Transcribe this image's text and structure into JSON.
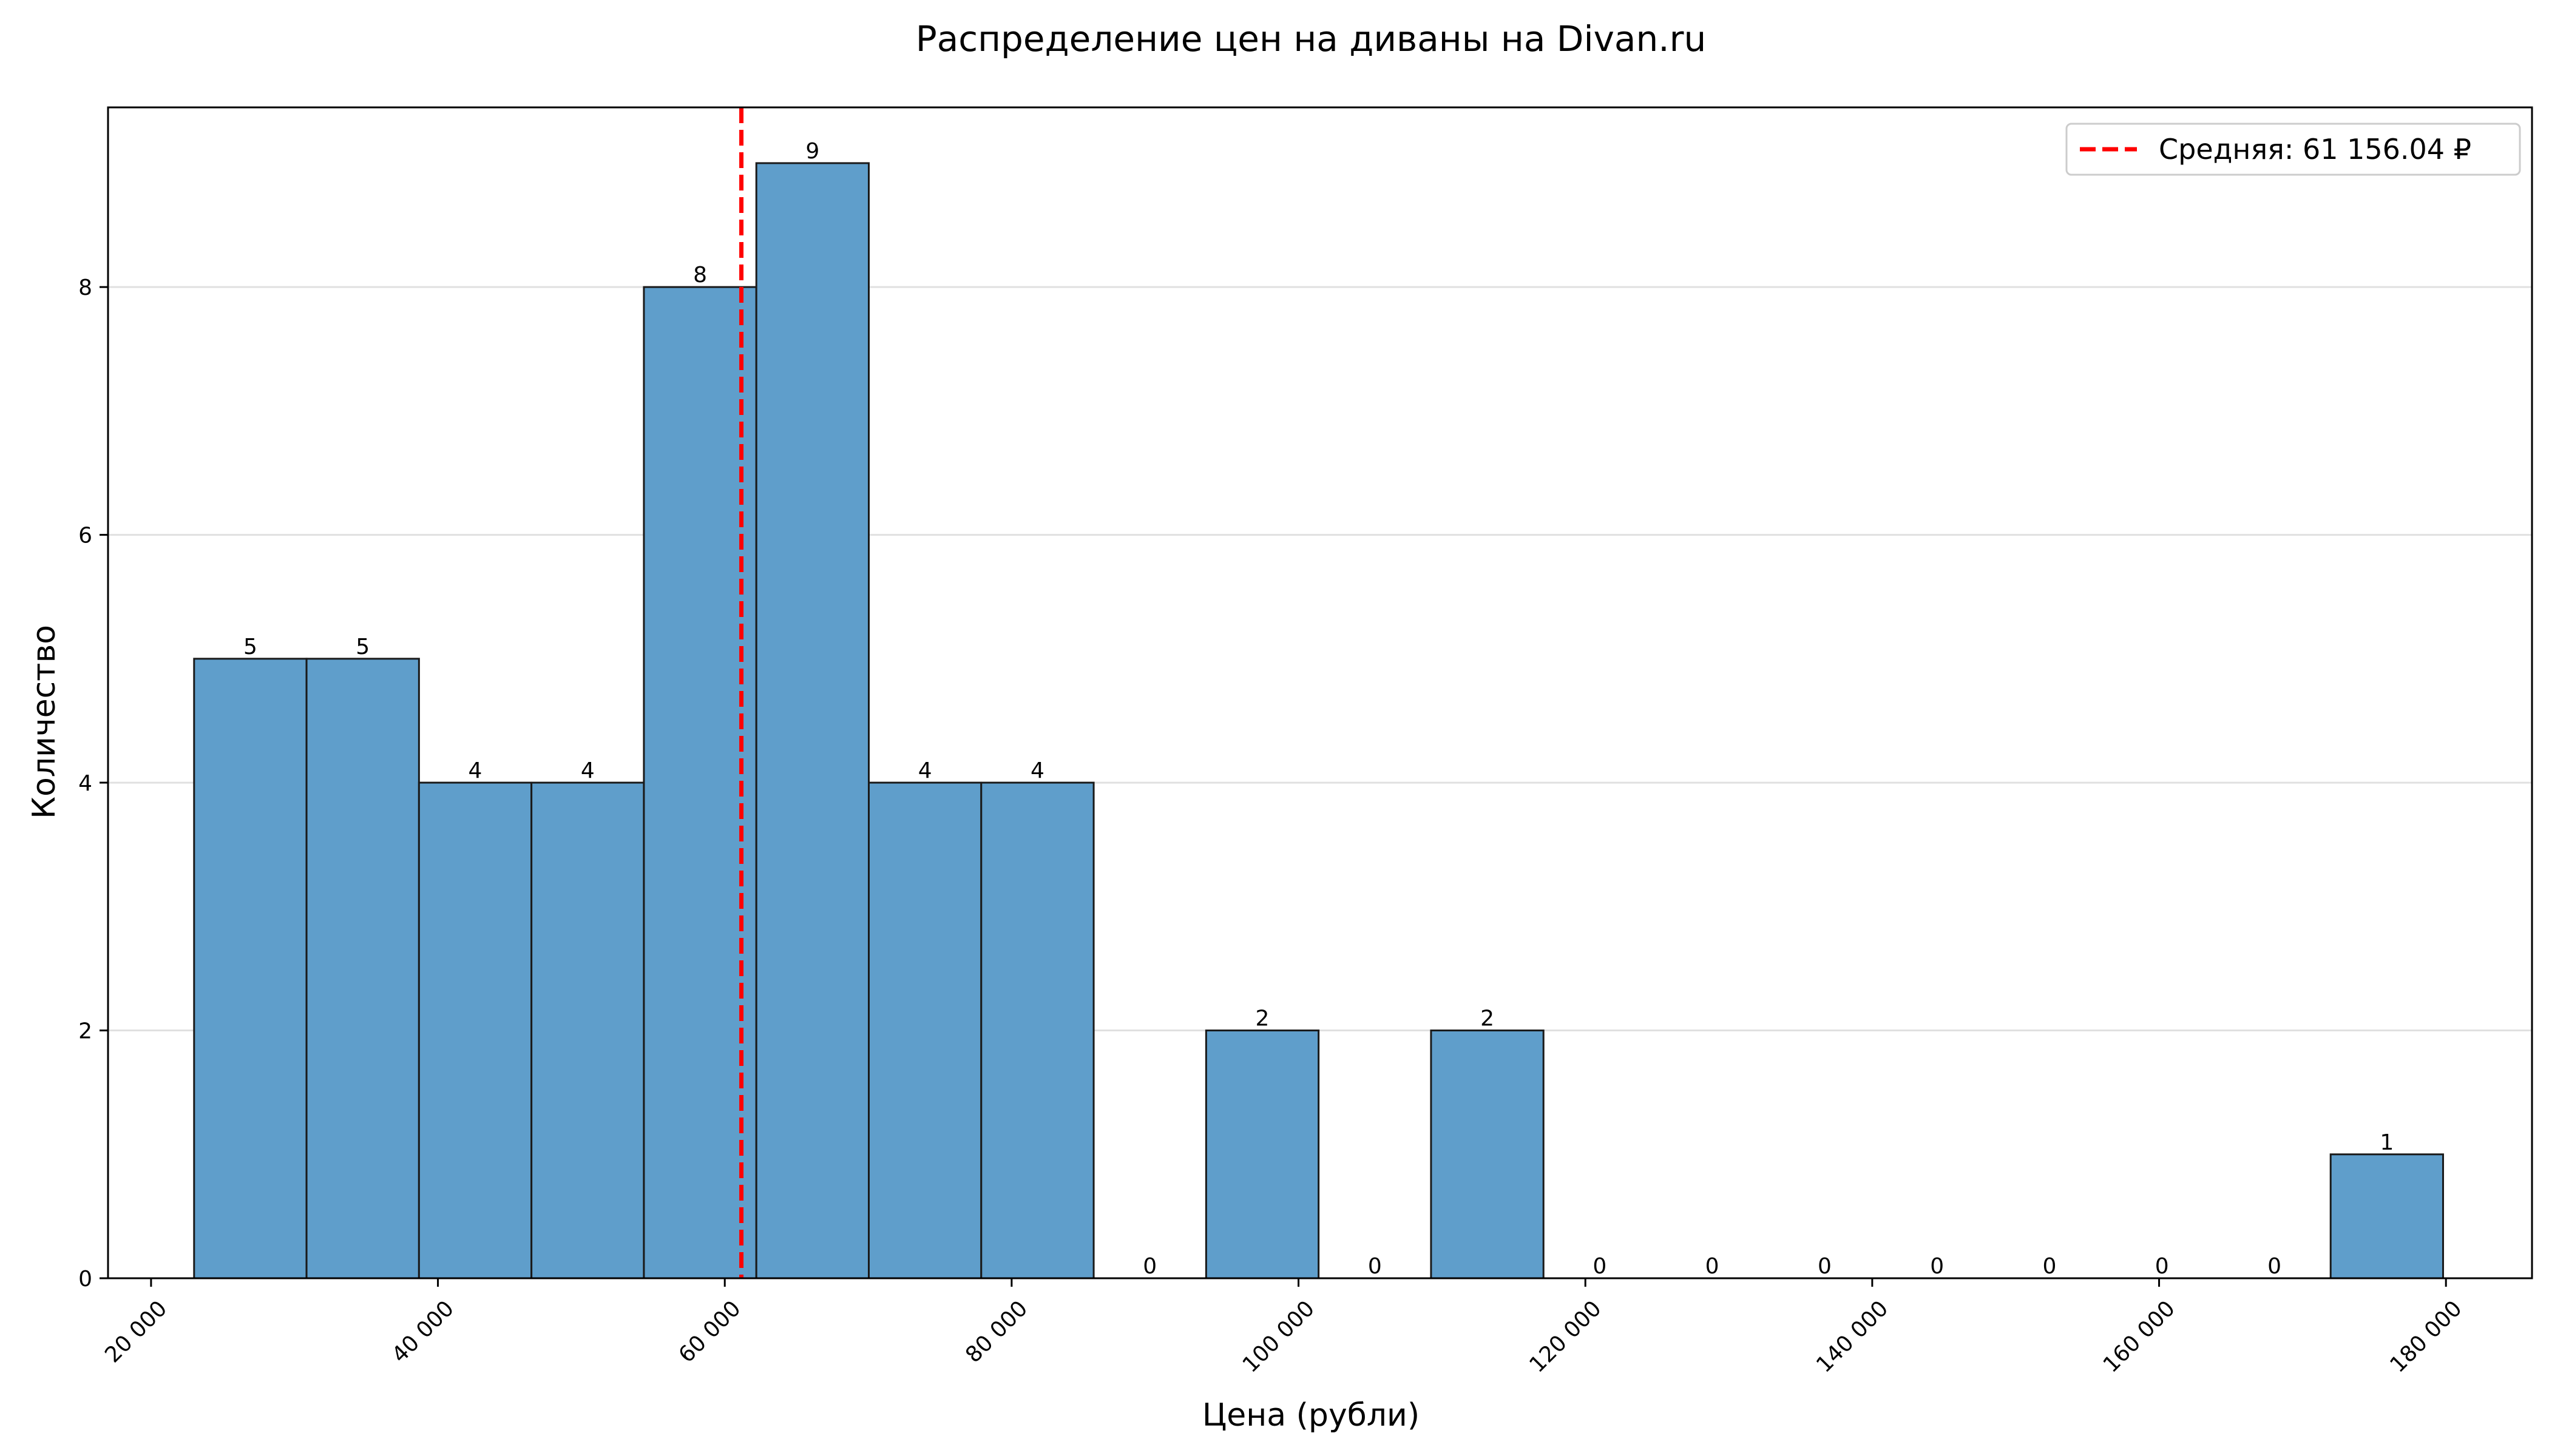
{
  "chart_data": {
    "type": "bar",
    "title": "Распределение цен на диваны на Divan.ru",
    "xlabel": "Цена (рубли)",
    "ylabel": "Количество",
    "bin_edges": [
      23000,
      30840,
      38680,
      46520,
      54360,
      62200,
      70040,
      77880,
      85720,
      93560,
      101400,
      109240,
      117080,
      124920,
      132760,
      140600,
      148440,
      156280,
      164120,
      171960,
      179800
    ],
    "values": [
      5,
      5,
      4,
      4,
      8,
      9,
      4,
      4,
      0,
      2,
      0,
      2,
      0,
      0,
      0,
      0,
      0,
      0,
      0,
      1
    ],
    "xlim": [
      17000,
      186000
    ],
    "ylim": [
      0,
      9.45
    ],
    "x_ticks": [
      {
        "value": 20000,
        "label": "20 000"
      },
      {
        "value": 40000,
        "label": "40 000"
      },
      {
        "value": 60000,
        "label": "60 000"
      },
      {
        "value": 80000,
        "label": "80 000"
      },
      {
        "value": 100000,
        "label": "100 000"
      },
      {
        "value": 120000,
        "label": "120 000"
      },
      {
        "value": 140000,
        "label": "140 000"
      },
      {
        "value": 160000,
        "label": "160 000"
      },
      {
        "value": 180000,
        "label": "180 000"
      }
    ],
    "y_ticks": [
      {
        "value": 0,
        "label": "0"
      },
      {
        "value": 2,
        "label": "2"
      },
      {
        "value": 4,
        "label": "4"
      },
      {
        "value": 6,
        "label": "6"
      },
      {
        "value": 8,
        "label": "8"
      }
    ],
    "mean": {
      "value": 61156.04,
      "label": "Средняя: 61 156.04 ₽"
    },
    "grid": "y",
    "legend_position": "top-right",
    "colors": {
      "bar": "#5f9ecb",
      "bar_edge": "#1a1a1a",
      "mean_line": "#ff0000",
      "grid": "#e0e0e0"
    }
  }
}
